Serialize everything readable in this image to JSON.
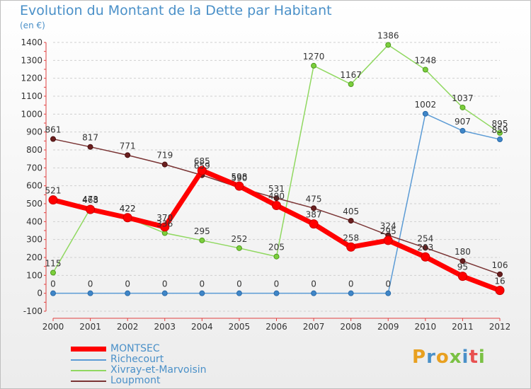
{
  "page": {
    "title": "Evolution du Montant de la Dette par Habitant",
    "subtitle": "(en €)",
    "logo_text": "Proxiti",
    "logo_colors": [
      "#e8a020",
      "#4a90c8",
      "#e8a020",
      "#7ac143",
      "#4a90c8",
      "#e85050",
      "#7ac143"
    ]
  },
  "chart_data": {
    "type": "line",
    "title": "Evolution du Montant de la Dette par Habitant",
    "subtitle": "(en €)",
    "xlabel": "",
    "ylabel": "",
    "x": [
      2000,
      2001,
      2002,
      2003,
      2004,
      2005,
      2006,
      2007,
      2008,
      2009,
      2010,
      2011,
      2012
    ],
    "ylim": [
      -100,
      1400
    ],
    "yticks": [
      -100,
      0,
      100,
      200,
      300,
      400,
      500,
      600,
      700,
      800,
      900,
      1000,
      1100,
      1200,
      1300,
      1400
    ],
    "grid": "horizontal",
    "legend_position": "bottom-left",
    "series": [
      {
        "name": "MONTSEC",
        "color": "#ff0000",
        "values": [
          521,
          468,
          422,
          370,
          685,
          598,
          490,
          387,
          258,
          295,
          203,
          95,
          16
        ]
      },
      {
        "name": "Richecourt",
        "color": "#5b9bd5",
        "values": [
          0,
          0,
          0,
          0,
          0,
          0,
          0,
          0,
          0,
          0,
          1002,
          907,
          859
        ]
      },
      {
        "name": "Xivray-et-Marvoisin",
        "color": "#90d860",
        "values": [
          115,
          473,
          422,
          336,
          295,
          252,
          205,
          1270,
          1167,
          1386,
          1248,
          1037,
          895
        ]
      },
      {
        "name": "Loupmont",
        "color": "#7a3434",
        "values": [
          861,
          817,
          771,
          719,
          659,
          590,
          531,
          475,
          405,
          324,
          254,
          180,
          106
        ]
      }
    ]
  }
}
